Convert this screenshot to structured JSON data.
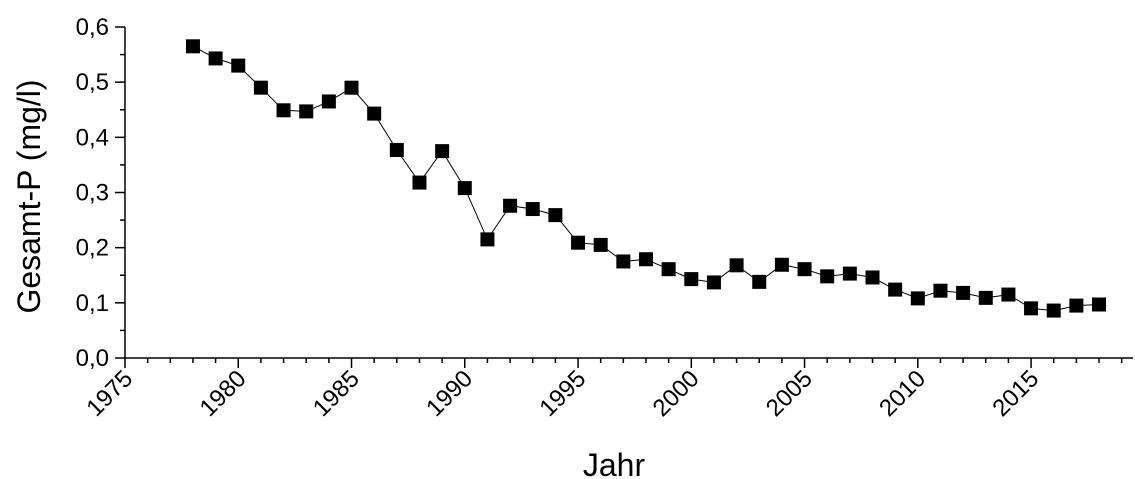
{
  "chart_data": {
    "type": "line",
    "title": "",
    "xlabel": "Jahr",
    "ylabel": "Gesamt-P (mg/l)",
    "xlim": [
      1975,
      2019.5
    ],
    "ylim": [
      0,
      0.6
    ],
    "x_ticks": [
      1975,
      1980,
      1985,
      1990,
      1995,
      2000,
      2005,
      2010,
      2015
    ],
    "x_tick_labels": [
      "1975",
      "1980",
      "1985",
      "1990",
      "1995",
      "2000",
      "2005",
      "2010",
      "2015"
    ],
    "y_ticks": [
      0,
      0.1,
      0.2,
      0.3,
      0.4,
      0.5,
      0.6
    ],
    "y_tick_labels": [
      "0,0",
      "0,1",
      "0,2",
      "0,3",
      "0,4",
      "0,5",
      "0,6"
    ],
    "grid": false,
    "legend": "none",
    "marker": "square",
    "color": "#000000",
    "x": [
      1978,
      1979,
      1980,
      1981,
      1982,
      1983,
      1984,
      1985,
      1986,
      1987,
      1988,
      1989,
      1990,
      1991,
      1992,
      1993,
      1994,
      1995,
      1996,
      1997,
      1998,
      1999,
      2000,
      2001,
      2002,
      2003,
      2004,
      2005,
      2006,
      2007,
      2008,
      2009,
      2010,
      2011,
      2012,
      2013,
      2014,
      2015,
      2016,
      2017,
      2018
    ],
    "series": [
      {
        "values": [
          0.565,
          0.543,
          0.53,
          0.49,
          0.449,
          0.447,
          0.465,
          0.49,
          0.443,
          0.377,
          0.318,
          0.375,
          0.308,
          0.215,
          0.276,
          0.27,
          0.259,
          0.209,
          0.205,
          0.175,
          0.179,
          0.161,
          0.143,
          0.137,
          0.168,
          0.138,
          0.169,
          0.161,
          0.148,
          0.153,
          0.146,
          0.124,
          0.108,
          0.122,
          0.118,
          0.109,
          0.115,
          0.09,
          0.086,
          0.095,
          0.097
        ]
      }
    ]
  }
}
